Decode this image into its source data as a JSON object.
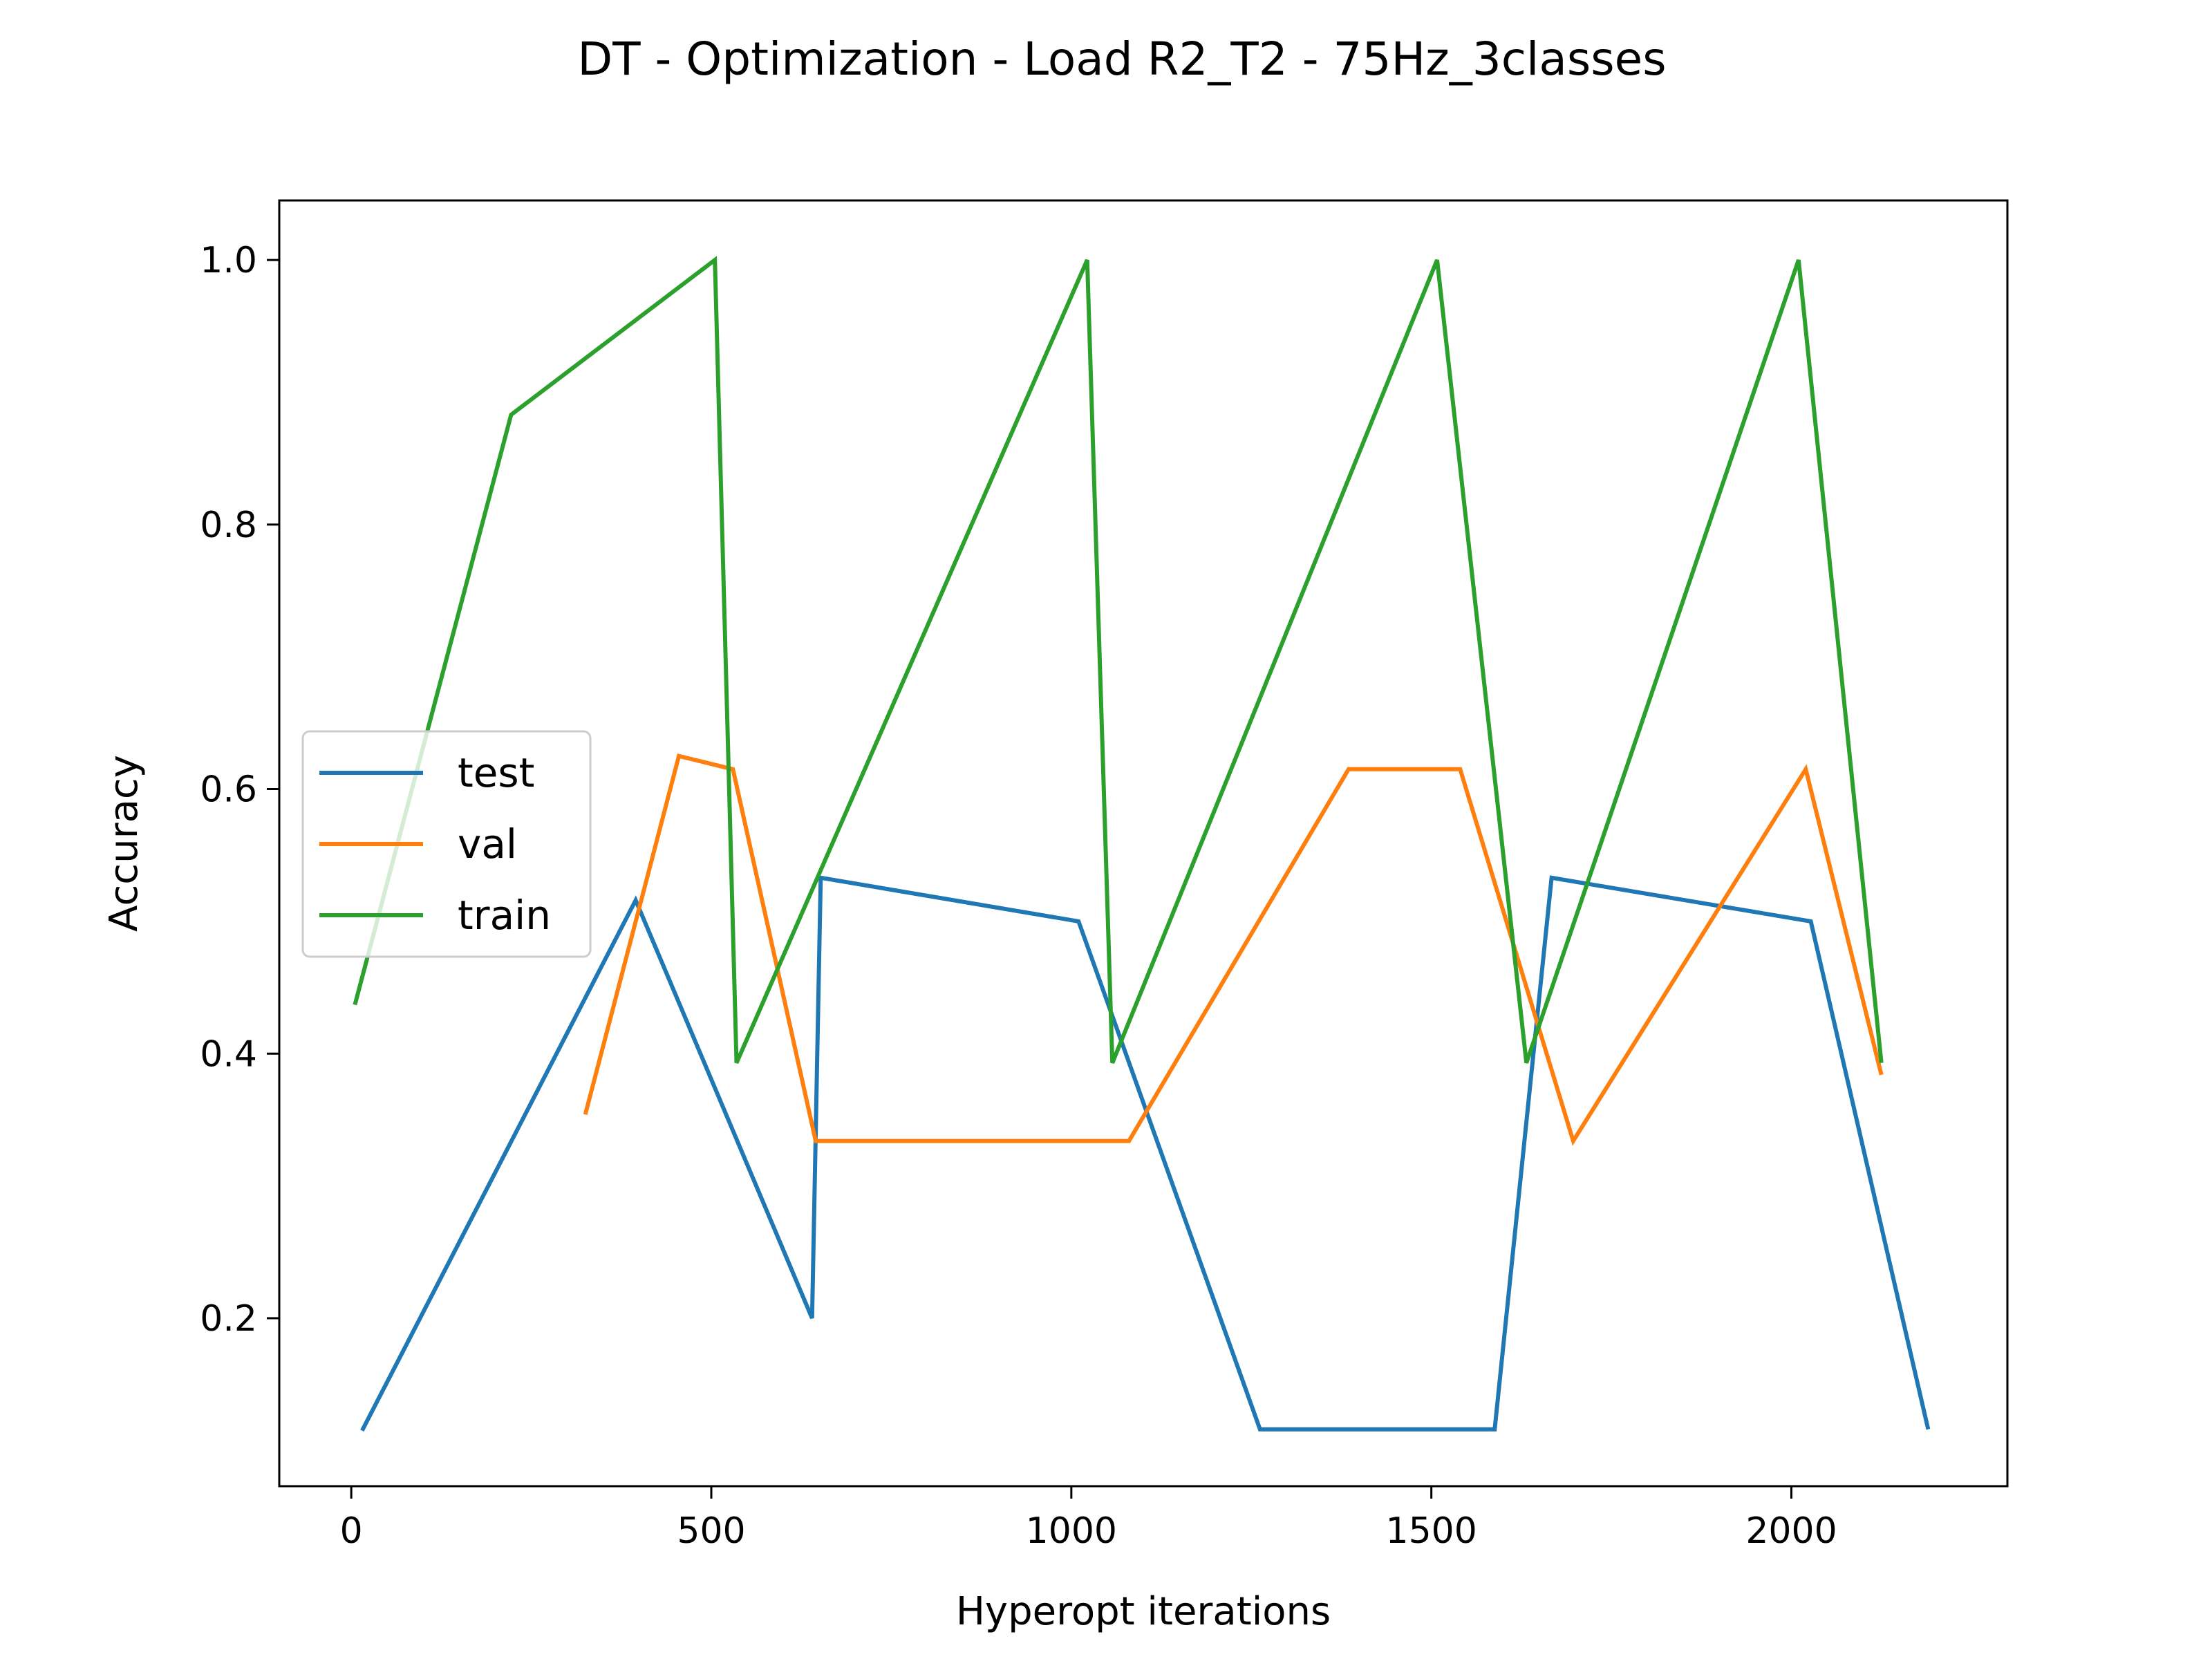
{
  "chart_data": {
    "type": "line",
    "title": "DT - Optimization - Load R2_T2 - 75Hz_3classes",
    "xlabel": "Hyperopt iterations",
    "ylabel": "Accuracy",
    "xlim": [
      -100,
      2300
    ],
    "ylim": [
      0.073,
      1.045
    ],
    "xticks": [
      0,
      500,
      1000,
      1500,
      2000
    ],
    "xtick_labels": [
      "0",
      "500",
      "1000",
      "1500",
      "2000"
    ],
    "yticks": [
      0.2,
      0.4,
      0.6,
      0.8,
      1.0
    ],
    "ytick_labels": [
      "0.2",
      "0.4",
      "0.6",
      "0.8",
      "1.0"
    ],
    "grid": false,
    "legend_position": "center-left",
    "series": [
      {
        "name": "test",
        "color": "#1f77b4",
        "points": [
          [
            15,
            0.115
          ],
          [
            395,
            0.516
          ],
          [
            640,
            0.2
          ],
          [
            652,
            0.533
          ],
          [
            1010,
            0.5
          ],
          [
            1262,
            0.116
          ],
          [
            1588,
            0.116
          ],
          [
            1667,
            0.533
          ],
          [
            2027,
            0.5
          ],
          [
            2190,
            0.116
          ]
        ]
      },
      {
        "name": "val",
        "color": "#ff7f0e",
        "points": [
          [
            325,
            0.354
          ],
          [
            455,
            0.625
          ],
          [
            530,
            0.615
          ],
          [
            645,
            0.334
          ],
          [
            1080,
            0.334
          ],
          [
            1385,
            0.615
          ],
          [
            1540,
            0.615
          ],
          [
            1697,
            0.334
          ],
          [
            2020,
            0.615
          ],
          [
            2125,
            0.384
          ]
        ]
      },
      {
        "name": "train",
        "color": "#2ca02c",
        "points": [
          [
            5,
            0.437
          ],
          [
            222,
            0.883
          ],
          [
            505,
            1.0
          ],
          [
            535,
            0.393
          ],
          [
            1022,
            1.0
          ],
          [
            1057,
            0.393
          ],
          [
            1508,
            1.0
          ],
          [
            1632,
            0.393
          ],
          [
            2010,
            1.0
          ],
          [
            2125,
            0.393
          ]
        ]
      }
    ]
  }
}
